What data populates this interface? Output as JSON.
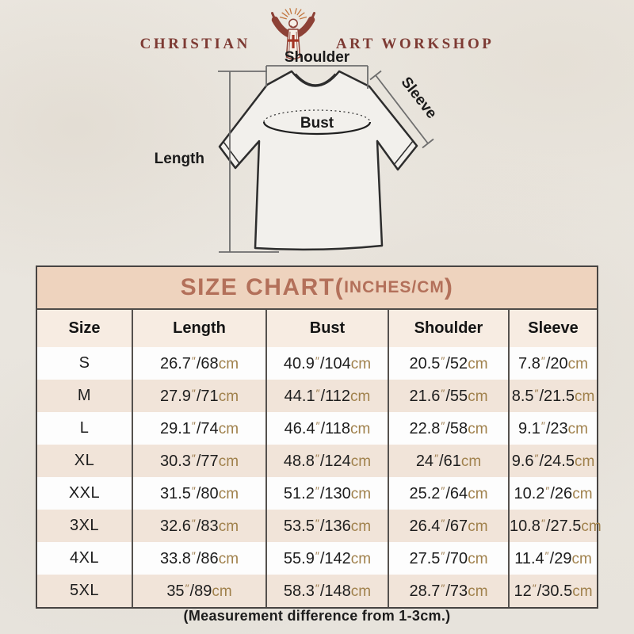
{
  "logo": {
    "left": "CHRISTIAN",
    "right": "ART WORKSHOP"
  },
  "diagram": {
    "labels": {
      "shoulder": "Shoulder",
      "sleeve": "Sleeve",
      "bust": "Bust",
      "length": "Length"
    }
  },
  "chart_data": {
    "type": "table",
    "title_main": "SIZE CHART(",
    "title_unit": "INCHES/CM",
    "title_close": ")",
    "columns": [
      "Size",
      "Length",
      "Bust",
      "Shoulder",
      "Sleeve"
    ],
    "inch_mark": "″",
    "slash": "/",
    "cm_unit": "cm",
    "rows": [
      {
        "size": "S",
        "inches": [
          26.7,
          40.9,
          20.5,
          7.8
        ],
        "cm": [
          68,
          104,
          52,
          20
        ]
      },
      {
        "size": "M",
        "inches": [
          27.9,
          44.1,
          21.6,
          8.5
        ],
        "cm": [
          71,
          112,
          55,
          21.5
        ]
      },
      {
        "size": "L",
        "inches": [
          29.1,
          46.4,
          22.8,
          9.1
        ],
        "cm": [
          74,
          118,
          58,
          23
        ]
      },
      {
        "size": "XL",
        "inches": [
          30.3,
          48.8,
          24,
          9.6
        ],
        "cm": [
          77,
          124,
          61,
          24.5
        ]
      },
      {
        "size": "XXL",
        "inches": [
          31.5,
          51.2,
          25.2,
          10.2
        ],
        "cm": [
          80,
          130,
          64,
          26
        ]
      },
      {
        "size": "3XL",
        "inches": [
          32.6,
          53.5,
          26.4,
          10.8
        ],
        "cm": [
          83,
          136,
          67,
          27.5
        ]
      },
      {
        "size": "4XL",
        "inches": [
          33.8,
          55.9,
          27.5,
          11.4
        ],
        "cm": [
          86,
          142,
          70,
          29
        ]
      },
      {
        "size": "5XL",
        "inches": [
          35,
          58.3,
          28.7,
          12
        ],
        "cm": [
          89,
          148,
          73,
          30.5
        ]
      }
    ]
  },
  "footer": {
    "note": "(Measurement difference from 1-3cm.)"
  },
  "colors": {
    "background": "#eae6df",
    "logo_red": "#8d4136",
    "title_text": "#b3705a",
    "title_band_bg": "#eed3be",
    "header_row_bg": "#f7ece2",
    "alt_row_bg": "#f1e4d9",
    "unit_brown": "#a0814c",
    "table_border": "#474442"
  }
}
